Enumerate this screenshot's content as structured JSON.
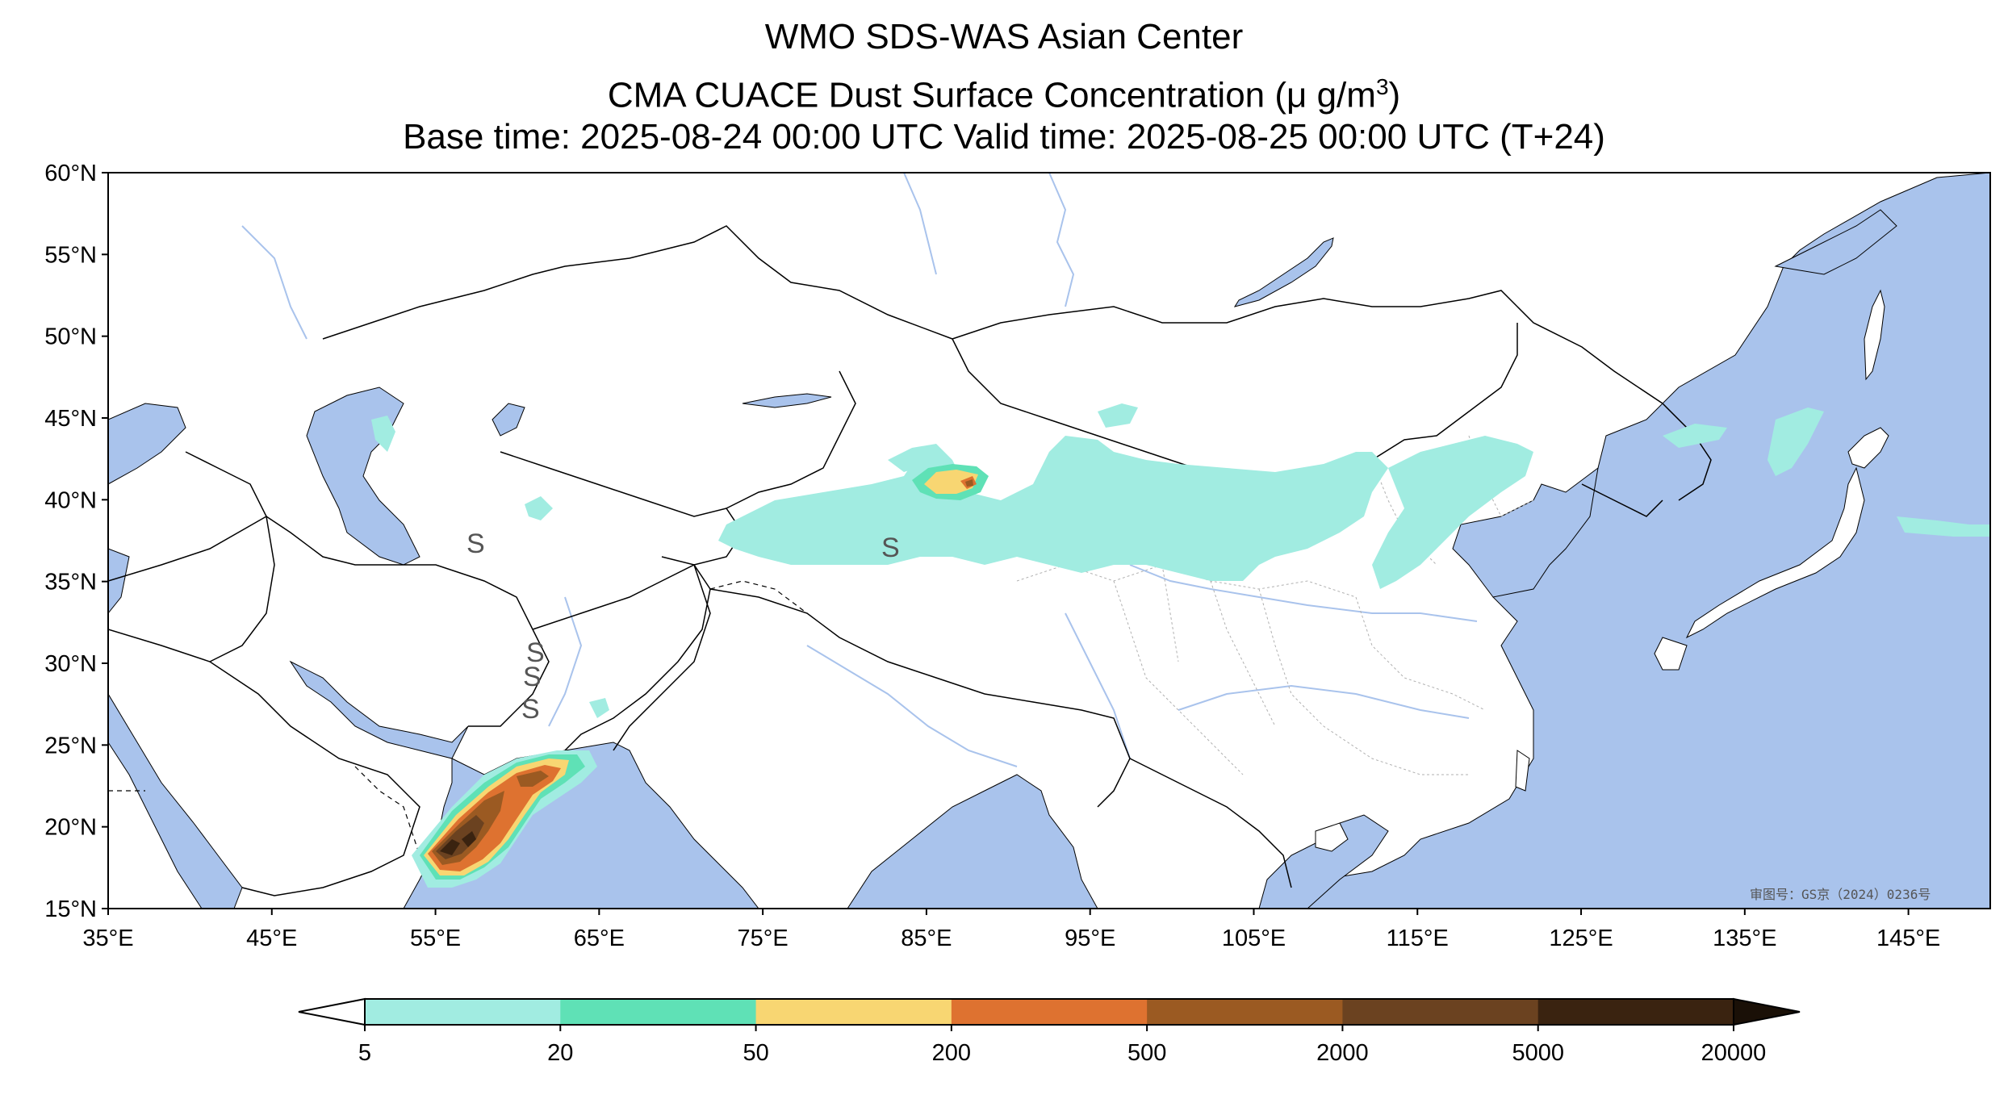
{
  "title": {
    "line1": "WMO SDS-WAS Asian Center",
    "line2_prefix": "CMA CUACE Dust Surface Concentration (μ g/m",
    "line2_sup": "3",
    "line2_suffix": ")",
    "line3": "Base time: 2025-08-24 00:00 UTC Valid time: 2025-08-25 00:00 UTC (T+24)"
  },
  "map": {
    "lon_range": [
      35,
      150
    ],
    "lat_range": [
      15,
      60
    ],
    "lat_ticks": [
      "60°N",
      "55°N",
      "50°N",
      "45°N",
      "40°N",
      "35°N",
      "30°N",
      "25°N",
      "20°N",
      "15°N"
    ],
    "lon_ticks": [
      "35°E",
      "45°E",
      "55°E",
      "65°E",
      "75°E",
      "85°E",
      "95°E",
      "105°E",
      "115°E",
      "125°E",
      "135°E",
      "145°E"
    ],
    "stamp": "审图号：GS京（2024）0236号",
    "colors": {
      "ocean": "#a9c3ec",
      "land": "#ffffff",
      "border": "#000000",
      "province": "#b0b0b0",
      "river": "#a9c3ec"
    }
  },
  "colorbar": {
    "levels": [
      "5",
      "20",
      "50",
      "200",
      "500",
      "2000",
      "5000",
      "20000"
    ],
    "colors": [
      "#a1ece1",
      "#5fe1b6",
      "#f8d672",
      "#de7230",
      "#9b5a22",
      "#6b4220",
      "#3a2310",
      "#1a1007"
    ],
    "under_color": "#ffffff",
    "extend": "both"
  }
}
